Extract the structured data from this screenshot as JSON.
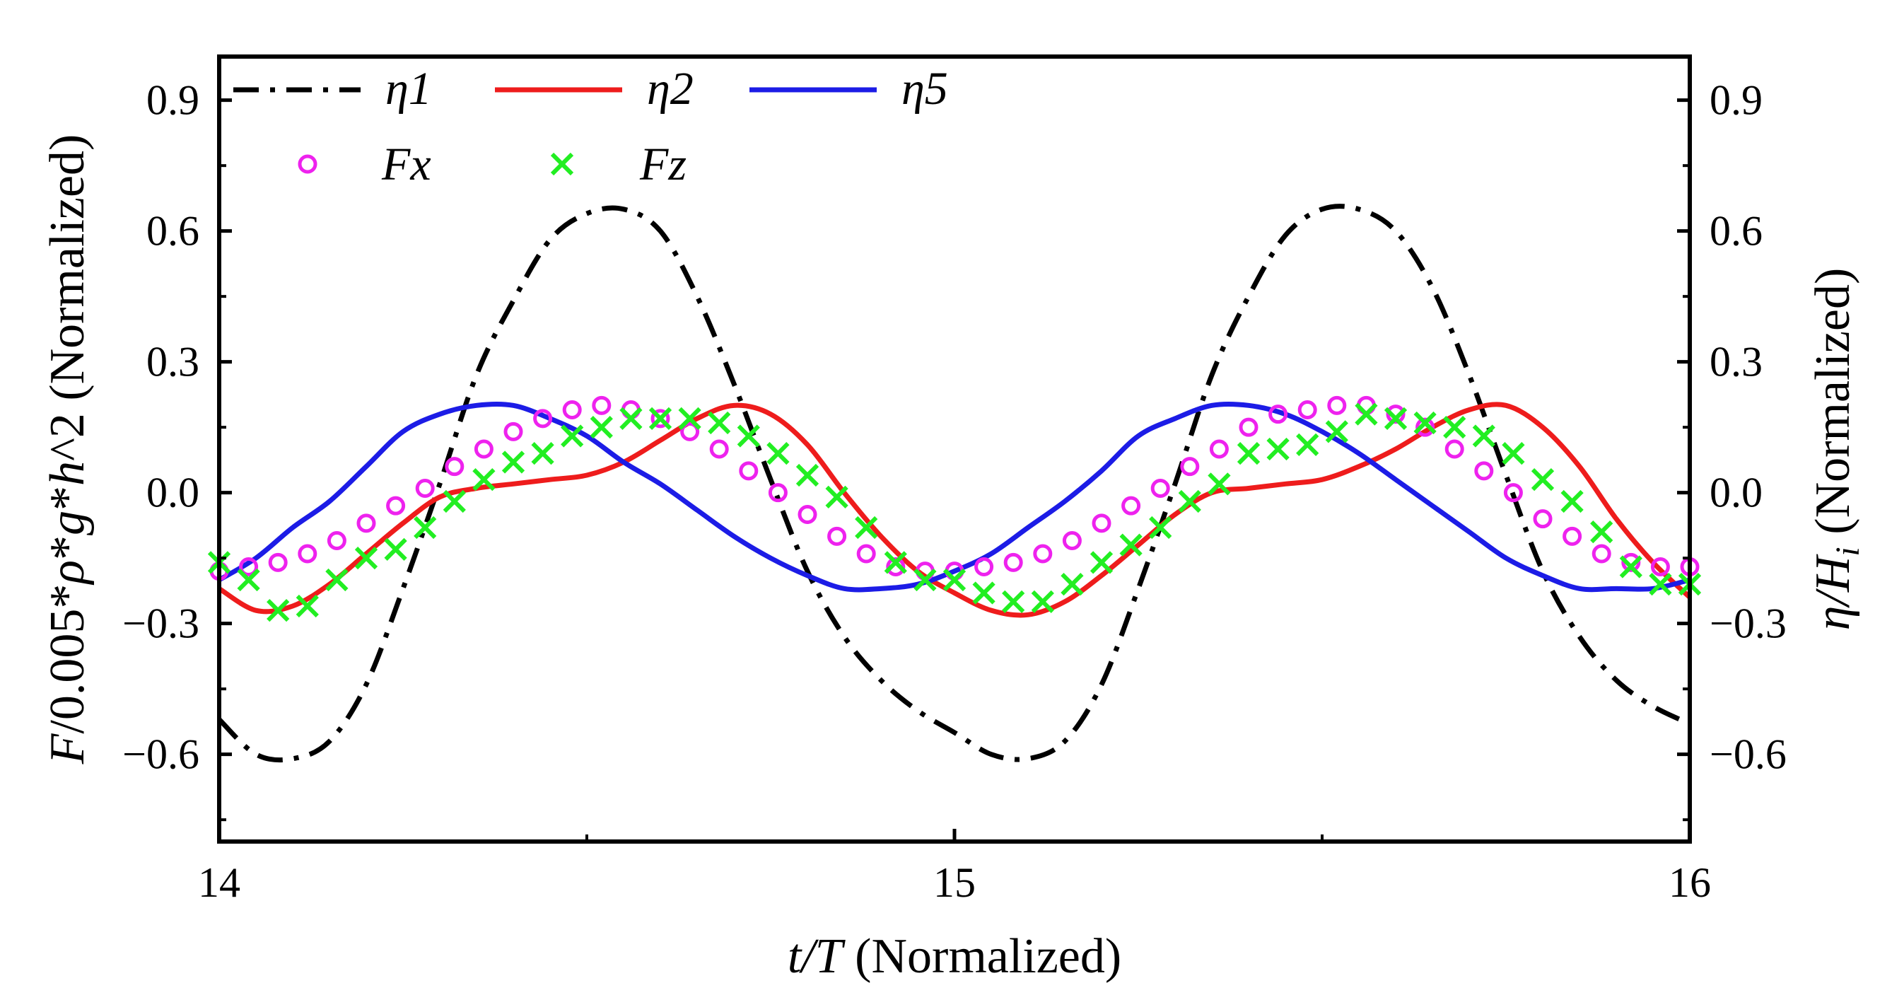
{
  "chart_data": {
    "type": "line",
    "xlabel": "t/T (Normalized)",
    "ylabel_left": "F/0.005*ρ*g*h^2 (Normalized)",
    "ylabel_right": "η/H_i (Normalized)",
    "xlim": [
      14,
      16
    ],
    "ylim": [
      -0.8,
      1.0
    ],
    "x_ticks": [
      14,
      15,
      16
    ],
    "x_minor_ticks": [
      14.5,
      15.5
    ],
    "y_ticks": [
      -0.6,
      -0.3,
      0.0,
      0.3,
      0.6,
      0.9
    ],
    "y_tick_labels": [
      "−0.6",
      "−0.3",
      "0.0",
      "0.3",
      "0.6",
      "0.9"
    ],
    "x_tick_labels": [
      "14",
      "15",
      "16"
    ],
    "series": [
      {
        "name": "η1",
        "style": "dashdot",
        "color": "#000000",
        "x": [
          14.0,
          14.05,
          14.1,
          14.15,
          14.2,
          14.25,
          14.3,
          14.35,
          14.4,
          14.45,
          14.5,
          14.55,
          14.6,
          14.65,
          14.7,
          14.75,
          14.8,
          14.85,
          14.9,
          14.95,
          15.0,
          15.05,
          15.1,
          15.15,
          15.2,
          15.25,
          15.3,
          15.35,
          15.4,
          15.45,
          15.5,
          15.55,
          15.6,
          15.65,
          15.7,
          15.75,
          15.8,
          15.85,
          15.9,
          15.95,
          16.0
        ],
        "values": [
          -0.52,
          -0.6,
          -0.61,
          -0.57,
          -0.44,
          -0.22,
          0.02,
          0.27,
          0.44,
          0.58,
          0.64,
          0.65,
          0.6,
          0.45,
          0.25,
          0.03,
          -0.18,
          -0.33,
          -0.43,
          -0.5,
          -0.55,
          -0.6,
          -0.61,
          -0.57,
          -0.44,
          -0.22,
          0.02,
          0.27,
          0.45,
          0.59,
          0.65,
          0.65,
          0.6,
          0.47,
          0.27,
          0.04,
          -0.18,
          -0.33,
          -0.43,
          -0.49,
          -0.53
        ]
      },
      {
        "name": "η2",
        "style": "solid",
        "color": "#ee1c1c",
        "x": [
          14.0,
          14.05,
          14.1,
          14.15,
          14.2,
          14.25,
          14.3,
          14.35,
          14.4,
          14.45,
          14.5,
          14.55,
          14.6,
          14.65,
          14.7,
          14.75,
          14.8,
          14.85,
          14.9,
          14.95,
          15.0,
          15.05,
          15.1,
          15.15,
          15.2,
          15.25,
          15.3,
          15.35,
          15.4,
          15.45,
          15.5,
          15.55,
          15.6,
          15.65,
          15.7,
          15.75,
          15.8,
          15.85,
          15.9,
          15.95,
          16.0
        ],
        "values": [
          -0.22,
          -0.27,
          -0.26,
          -0.21,
          -0.14,
          -0.07,
          -0.01,
          0.01,
          0.02,
          0.03,
          0.04,
          0.07,
          0.12,
          0.17,
          0.2,
          0.18,
          0.11,
          0.0,
          -0.1,
          -0.18,
          -0.23,
          -0.27,
          -0.28,
          -0.25,
          -0.19,
          -0.12,
          -0.05,
          0.0,
          0.01,
          0.02,
          0.03,
          0.06,
          0.1,
          0.15,
          0.19,
          0.2,
          0.15,
          0.06,
          -0.06,
          -0.16,
          -0.24
        ]
      },
      {
        "name": "η5",
        "style": "solid",
        "color": "#1c1ce6",
        "x": [
          14.0,
          14.05,
          14.1,
          14.15,
          14.2,
          14.25,
          14.3,
          14.35,
          14.4,
          14.45,
          14.5,
          14.55,
          14.6,
          14.65,
          14.7,
          14.75,
          14.8,
          14.85,
          14.9,
          14.95,
          15.0,
          15.05,
          15.1,
          15.15,
          15.2,
          15.25,
          15.3,
          15.35,
          15.4,
          15.45,
          15.5,
          15.55,
          15.6,
          15.65,
          15.7,
          15.75,
          15.8,
          15.85,
          15.9,
          15.95,
          16.0
        ],
        "values": [
          -0.2,
          -0.15,
          -0.08,
          -0.02,
          0.06,
          0.14,
          0.18,
          0.2,
          0.2,
          0.17,
          0.13,
          0.07,
          0.02,
          -0.04,
          -0.1,
          -0.15,
          -0.19,
          -0.22,
          -0.22,
          -0.21,
          -0.18,
          -0.14,
          -0.08,
          -0.02,
          0.05,
          0.13,
          0.17,
          0.2,
          0.2,
          0.18,
          0.14,
          0.09,
          0.03,
          -0.03,
          -0.09,
          -0.15,
          -0.19,
          -0.22,
          -0.22,
          -0.22,
          -0.2
        ]
      },
      {
        "name": "Fx",
        "style": "circle",
        "color": "#ee22ee",
        "x": [
          14.0,
          14.04,
          14.08,
          14.12,
          14.16,
          14.2,
          14.24,
          14.28,
          14.32,
          14.36,
          14.4,
          14.44,
          14.48,
          14.52,
          14.56,
          14.6,
          14.64,
          14.68,
          14.72,
          14.76,
          14.8,
          14.84,
          14.88,
          14.92,
          14.96,
          15.0,
          15.04,
          15.08,
          15.12,
          15.16,
          15.2,
          15.24,
          15.28,
          15.32,
          15.36,
          15.4,
          15.44,
          15.48,
          15.52,
          15.56,
          15.6,
          15.64,
          15.68,
          15.72,
          15.76,
          15.8,
          15.84,
          15.88,
          15.92,
          15.96,
          16.0
        ],
        "values": [
          -0.18,
          -0.17,
          -0.16,
          -0.14,
          -0.11,
          -0.07,
          -0.03,
          0.01,
          0.06,
          0.1,
          0.14,
          0.17,
          0.19,
          0.2,
          0.19,
          0.17,
          0.14,
          0.1,
          0.05,
          0.0,
          -0.05,
          -0.1,
          -0.14,
          -0.17,
          -0.18,
          -0.18,
          -0.17,
          -0.16,
          -0.14,
          -0.11,
          -0.07,
          -0.03,
          0.01,
          0.06,
          0.1,
          0.15,
          0.18,
          0.19,
          0.2,
          0.2,
          0.18,
          0.15,
          0.1,
          0.05,
          0.0,
          -0.06,
          -0.1,
          -0.14,
          -0.16,
          -0.17,
          -0.17
        ]
      },
      {
        "name": "Fz",
        "style": "cross",
        "color": "#22ee22",
        "x": [
          14.0,
          14.04,
          14.08,
          14.12,
          14.16,
          14.2,
          14.24,
          14.28,
          14.32,
          14.36,
          14.4,
          14.44,
          14.48,
          14.52,
          14.56,
          14.6,
          14.64,
          14.68,
          14.72,
          14.76,
          14.8,
          14.84,
          14.88,
          14.92,
          14.96,
          15.0,
          15.04,
          15.08,
          15.12,
          15.16,
          15.2,
          15.24,
          15.28,
          15.32,
          15.36,
          15.4,
          15.44,
          15.48,
          15.52,
          15.56,
          15.6,
          15.64,
          15.68,
          15.72,
          15.76,
          15.8,
          15.84,
          15.88,
          15.92,
          15.96,
          16.0
        ],
        "values": [
          -0.16,
          -0.2,
          -0.27,
          -0.26,
          -0.2,
          -0.15,
          -0.13,
          -0.08,
          -0.02,
          0.03,
          0.07,
          0.09,
          0.13,
          0.15,
          0.17,
          0.17,
          0.17,
          0.16,
          0.13,
          0.09,
          0.04,
          -0.01,
          -0.08,
          -0.16,
          -0.2,
          -0.2,
          -0.23,
          -0.25,
          -0.25,
          -0.21,
          -0.16,
          -0.12,
          -0.08,
          -0.02,
          0.02,
          0.09,
          0.1,
          0.11,
          0.14,
          0.18,
          0.17,
          0.16,
          0.15,
          0.13,
          0.09,
          0.03,
          -0.02,
          -0.09,
          -0.17,
          -0.21,
          -0.21
        ]
      }
    ],
    "legend": {
      "position": "top-left",
      "entries": [
        "η1",
        "η2",
        "η5",
        "Fx",
        "Fz"
      ]
    }
  }
}
